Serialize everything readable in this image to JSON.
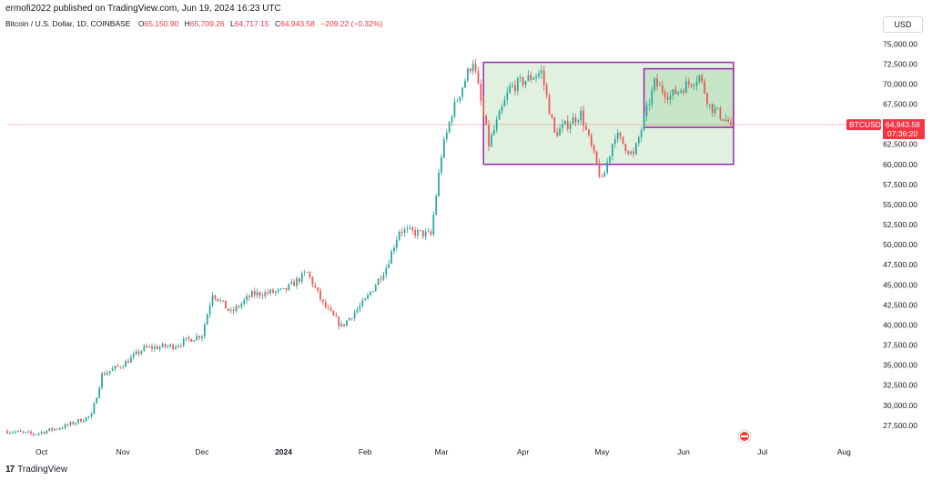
{
  "header": {
    "published": "ermofi2022 published on TradingView.com, Jun 19, 2024 16:23 UTC"
  },
  "symbol": {
    "name": "Bitcoin / U.S. Dollar, 1D, COINBASE",
    "open_label": "O",
    "open": "65,150.90",
    "high_label": "H",
    "high": "65,709.26",
    "low_label": "L",
    "low": "64,717.15",
    "close_label": "C",
    "close": "64,943.58",
    "change": "−209.22 (−0.32%)"
  },
  "currency_button": "USD",
  "price_tag": {
    "ticker": "BTCUSD",
    "price": "64,943.58",
    "countdown": "07:36:20"
  },
  "brand": {
    "logo_text": "17",
    "name": "TradingView"
  },
  "colors": {
    "up": "#26a69a",
    "down": "#ef5350",
    "box_fill": "#a5d6a7",
    "box_stroke": "#9c27b0",
    "last_price": "#f23645"
  },
  "chart_data": {
    "type": "candlestick",
    "y_ticks": [
      27500,
      30000,
      32500,
      35000,
      37500,
      40000,
      42500,
      45000,
      47500,
      50000,
      52500,
      55000,
      57500,
      60000,
      62500,
      65000,
      67500,
      70000,
      72500,
      75000
    ],
    "ylim": [
      25000,
      76500
    ],
    "x_month_labels": [
      {
        "label": "Oct",
        "date": "2023-10-01"
      },
      {
        "label": "Nov",
        "date": "2023-11-01"
      },
      {
        "label": "Dec",
        "date": "2023-12-01"
      },
      {
        "label": "2024",
        "date": "2024-01-01",
        "bold": true
      },
      {
        "label": "Feb",
        "date": "2024-02-01"
      },
      {
        "label": "Mar",
        "date": "2024-03-01"
      },
      {
        "label": "Apr",
        "date": "2024-04-01"
      },
      {
        "label": "May",
        "date": "2024-05-01"
      },
      {
        "label": "Jun",
        "date": "2024-06-01"
      },
      {
        "label": "Jul",
        "date": "2024-07-01"
      },
      {
        "label": "Aug",
        "date": "2024-08-01"
      }
    ],
    "xlim": [
      "2023-09-18",
      "2024-08-13"
    ],
    "anchors": [
      [
        "2023-09-18",
        26800
      ],
      [
        "2023-09-28",
        26400
      ],
      [
        "2023-10-10",
        27400
      ],
      [
        "2023-10-20",
        28700
      ],
      [
        "2023-10-24",
        33800
      ],
      [
        "2023-11-01",
        35100
      ],
      [
        "2023-11-09",
        37100
      ],
      [
        "2023-11-20",
        37400
      ],
      [
        "2023-12-01",
        38800
      ],
      [
        "2023-12-05",
        44000
      ],
      [
        "2023-12-12",
        41500
      ],
      [
        "2023-12-20",
        43800
      ],
      [
        "2024-01-01",
        44200
      ],
      [
        "2024-01-10",
        46500
      ],
      [
        "2024-01-16",
        42600
      ],
      [
        "2024-01-23",
        39800
      ],
      [
        "2024-02-01",
        43000
      ],
      [
        "2024-02-09",
        47200
      ],
      [
        "2024-02-14",
        51800
      ],
      [
        "2024-02-26",
        51200
      ],
      [
        "2024-03-01",
        61200
      ],
      [
        "2024-03-05",
        66500
      ],
      [
        "2024-03-13",
        73000
      ],
      [
        "2024-03-19",
        62500
      ],
      [
        "2024-03-27",
        69500
      ],
      [
        "2024-04-08",
        71500
      ],
      [
        "2024-04-13",
        63800
      ],
      [
        "2024-04-23",
        66300
      ],
      [
        "2024-05-01",
        57800
      ],
      [
        "2024-05-06",
        63800
      ],
      [
        "2024-05-13",
        61000
      ],
      [
        "2024-05-21",
        70100
      ],
      [
        "2024-05-27",
        68500
      ],
      [
        "2024-06-07",
        71000
      ],
      [
        "2024-06-11",
        67300
      ],
      [
        "2024-06-19",
        64943.58
      ]
    ],
    "boxes": [
      {
        "start": "2024-03-17",
        "end": "2024-06-20",
        "top": 72700,
        "bottom": 60000
      },
      {
        "start": "2024-05-17",
        "end": "2024-06-20",
        "top": 71900,
        "bottom": 64600
      }
    ],
    "last_price": 64943.58
  }
}
